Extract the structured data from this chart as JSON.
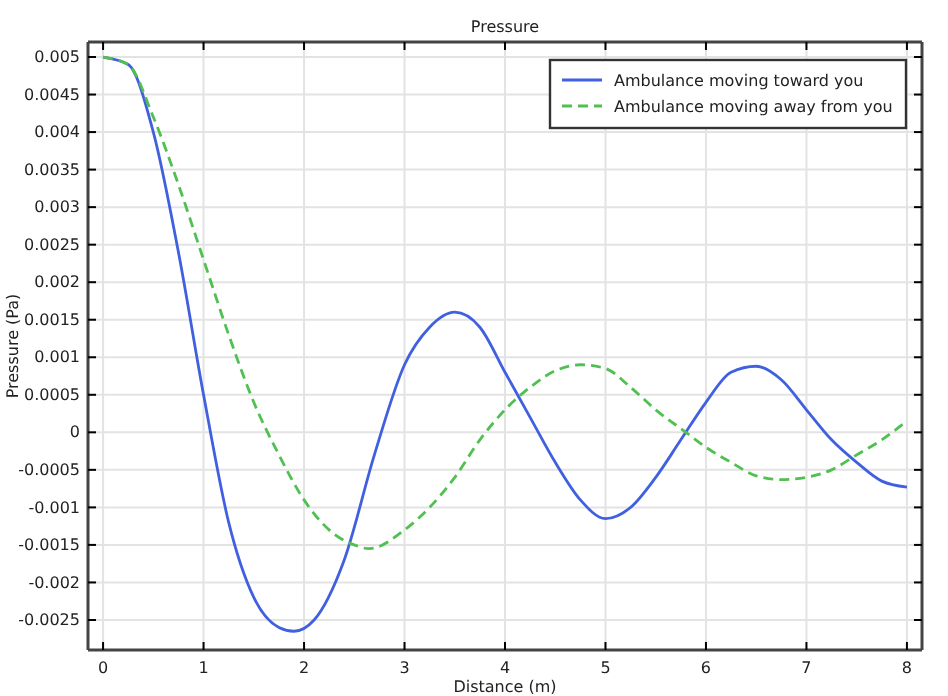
{
  "chart_data": {
    "type": "line",
    "title": "Pressure",
    "xlabel": "Distance (m)",
    "ylabel": "Pressure (Pa)",
    "xlim": [
      -0.15,
      8.15
    ],
    "xticks": [
      0,
      1,
      2,
      3,
      4,
      5,
      6,
      7,
      8
    ],
    "ylim": [
      -0.0029,
      0.0052
    ],
    "yticks": [
      -0.0025,
      -0.002,
      -0.0015,
      -0.001,
      -0.0005,
      0,
      0.0005,
      0.001,
      0.0015,
      0.002,
      0.0025,
      0.003,
      0.0035,
      0.004,
      0.0045,
      0.005
    ],
    "grid": true,
    "legend": "top right",
    "series": [
      {
        "name": "Ambulance moving toward you",
        "color": "#4060e0",
        "line_style": "solid",
        "x": [
          0,
          0.25,
          0.5,
          0.75,
          1.0,
          1.25,
          1.5,
          1.75,
          1.9,
          2.1,
          2.4,
          2.7,
          3.0,
          3.25,
          3.5,
          3.75,
          4.0,
          4.25,
          4.5,
          4.75,
          5.0,
          5.25,
          5.5,
          5.75,
          6.0,
          6.25,
          6.5,
          6.75,
          7.0,
          7.25,
          7.5,
          7.75,
          8.0
        ],
        "values": [
          0.005,
          0.0049,
          0.004,
          0.0024,
          0.0005,
          -0.0012,
          -0.0022,
          -0.0026,
          -0.00265,
          -0.0025,
          -0.0017,
          -0.0003,
          0.0009,
          0.0014,
          0.0016,
          0.0014,
          0.0008,
          0.0002,
          -0.0004,
          -0.0009,
          -0.00115,
          -0.001,
          -0.0006,
          -0.0001,
          0.0004,
          0.0008,
          0.00088,
          0.0007,
          0.0003,
          -0.0001,
          -0.0004,
          -0.00065,
          -0.00073
        ]
      },
      {
        "name": "Ambulance moving away from you",
        "color": "#50c050",
        "line_style": "dashed",
        "x": [
          0,
          0.25,
          0.5,
          0.75,
          1.0,
          1.25,
          1.5,
          1.75,
          2.0,
          2.25,
          2.5,
          2.65,
          3.0,
          3.25,
          3.5,
          3.75,
          4.0,
          4.25,
          4.5,
          4.75,
          5.0,
          5.25,
          5.5,
          5.8,
          6.0,
          6.25,
          6.5,
          6.75,
          7.0,
          7.25,
          7.5,
          7.75,
          8.0
        ],
        "values": [
          0.005,
          0.0049,
          0.0042,
          0.0033,
          0.0023,
          0.0013,
          0.0004,
          -0.0003,
          -0.0009,
          -0.0013,
          -0.0015,
          -0.00155,
          -0.0013,
          -0.001,
          -0.0006,
          -0.0001,
          0.0003,
          0.0006,
          0.00082,
          0.0009,
          0.00085,
          0.0006,
          0.0003,
          0.0,
          -0.0002,
          -0.0004,
          -0.00058,
          -0.00063,
          -0.0006,
          -0.0005,
          -0.0003,
          -0.0001,
          0.00015
        ]
      }
    ]
  }
}
